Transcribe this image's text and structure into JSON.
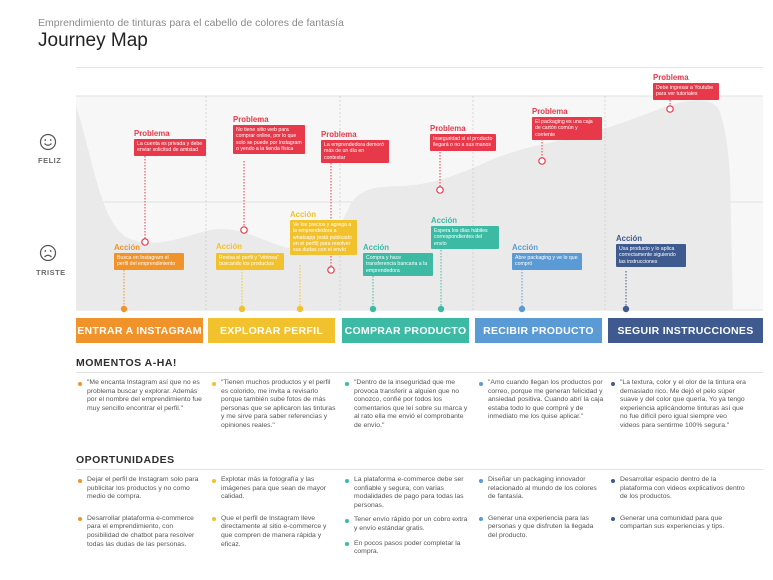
{
  "header": {
    "subtitle": "Emprendimiento de tinturas para el cabello de colores de fantasía",
    "title": "Journey Map"
  },
  "emotions": {
    "happy_label": "FELIZ",
    "sad_label": "TRISTE"
  },
  "colors": {
    "problem": "#e8394a",
    "stage1": "#f0932b",
    "stage2": "#f2c12e",
    "stage3": "#3dbaa4",
    "stage4": "#5b9bd5",
    "stage5": "#3e5a8f",
    "curve_fill": "#ebebeb"
  },
  "problems": [
    {
      "title": "Problema",
      "text": "La cuenta es privada y debe enviar solicitud de amistad"
    },
    {
      "title": "Problema",
      "text": "No tiene sitio web para comprar online, por lo que solo se puede por Instagram o yendo a la tienda física"
    },
    {
      "title": "Problema",
      "text": "La emprendedora demoró más de un día en contestar"
    },
    {
      "title": "Problema",
      "text": "Inseguridad si el producto llegará o no a sus manos"
    },
    {
      "title": "Problema",
      "text": "El packaging es una caja de cartón común y corriente"
    },
    {
      "title": "Problema",
      "text": "Debe ingresar a Youtube para ver tutoriales"
    }
  ],
  "actions": [
    {
      "title": "Acción",
      "text": "Busca en Instagram el perfil del emprendimiento"
    },
    {
      "title": "Acción",
      "text": "Revisa el perfil y \"vitrinea\" buscando los productos"
    },
    {
      "title": "Acción",
      "text": "Ve los precios y agrega a la emprendedora a whatsapp (está publicado en el perfil) para resolver sus dudas con el envío"
    },
    {
      "title": "Acción",
      "text": "Compra y hace transferencia bancaria a la emprendedora"
    },
    {
      "title": "Acción",
      "text": "Espera los días hábiles correspondientes del envío"
    },
    {
      "title": "Acción",
      "text": "Abre packaging y ve lo que compró"
    },
    {
      "title": "Acción",
      "text": "Usa producto y lo aplica correctamente siguiendo las instrucciones"
    }
  ],
  "stages": [
    {
      "label": "ENTRAR A INSTAGRAM"
    },
    {
      "label": "EXPLORAR PERFIL"
    },
    {
      "label": "COMPRAR PRODUCTO"
    },
    {
      "label": "RECIBIR PRODUCTO"
    },
    {
      "label": "SEGUIR INSTRUCCIONES"
    }
  ],
  "aha": {
    "heading": "MOMENTOS A-HA!",
    "items": [
      "\"Me encanta Instagram así que no es problema buscar y explorar. Además por el nombre del emprendimiento fue muy sencillo encontrar el perfil.\"",
      "\"Tienen muchos productos y el perfil es colorido, me invita a revisarlo porque también sube fotos de más personas que se aplicaron las tinturas y me sirve para saber referencias y opiniones reales.\"",
      "\"Dentro de la inseguridad que me provoca transferir a alguien que no conozco, confié por todos los comentarios que leí sobre su marca y al rato ella me envió el comprobante de envío.\"",
      "\"Amo cuando llegan los productos por correo, porque me generan felicidad y ansiedad positiva. Cuando abrí la caja estaba todo lo que compré y de inmediato me los quise aplicar.\"",
      "\"La textura, color y el olor de la tintura era demasiado rico. Me dejó el pelo súper suave y del color que quería. Yo ya tengo experiencia aplicándome tinturas así que no fue difícil pero igual siempre veo videos para sentirme 100% segura.\""
    ]
  },
  "opportunities": {
    "heading": "OPORTUNIDADES",
    "columns": [
      [
        "Dejar el perfil de Instagram solo para publicitar los productos y no como medio de compra.",
        "Desarrollar plataforma e-commerce para el emprendimiento, con posibilidad de chatbot para resolver todas las dudas de las personas."
      ],
      [
        "Explotar más la fotografía y las imágenes para que sean de mayor calidad.",
        "Que el perfil de Instagram lleve directamente al sitio e-commerce y que compren de manera rápida y eficaz."
      ],
      [
        "La plataforma e-commerce debe ser confiable y segura, con varias modalidades de pago para todas las personas.",
        "Tener envío rápido por un cobro extra y envío estándar gratis.",
        "En pocos pasos poder completar la compra."
      ],
      [
        "Diseñar un packaging innovador relacionado al mundo de los colores de fantasía.",
        "Generar una experiencia para las personas y que disfruten la llegada del producto."
      ],
      [
        "Desarrollar espacio dentro de la plataforma con videos explicativos dentro de los productos.",
        "Generar una comunidad para que compartan sus experiencias y tips."
      ]
    ]
  }
}
